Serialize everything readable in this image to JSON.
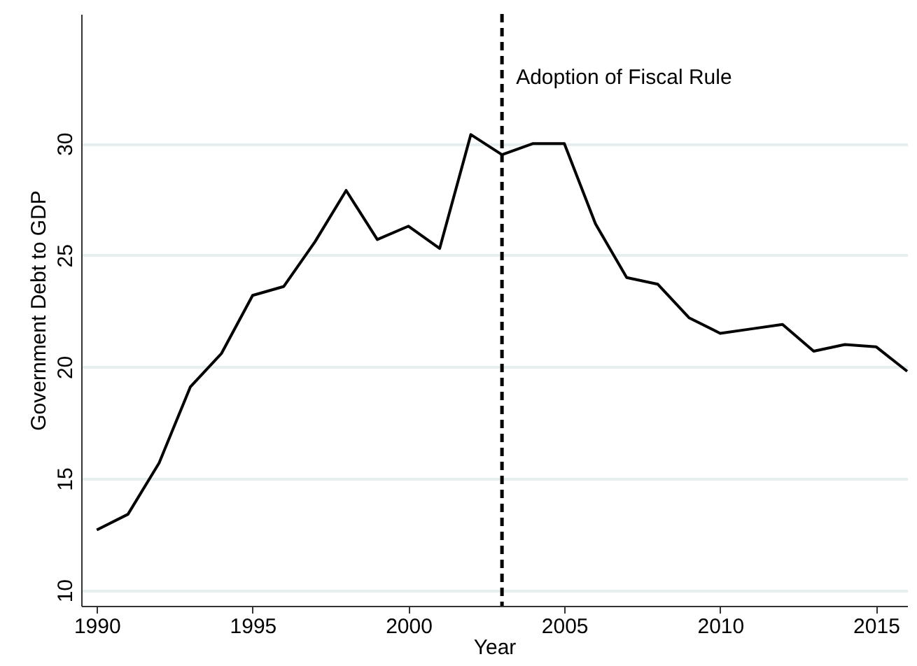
{
  "chart_data": {
    "type": "line",
    "xlabel": "Year",
    "ylabel": "Government Debt to GDP",
    "x": [
      1990,
      1991,
      1992,
      1993,
      1994,
      1995,
      1996,
      1997,
      1998,
      1999,
      2000,
      2001,
      2002,
      2003,
      2004,
      2005,
      2006,
      2007,
      2008,
      2009,
      2010,
      2011,
      2012,
      2013,
      2014,
      2015,
      2016
    ],
    "series": [
      {
        "color": "#000000",
        "values": [
          12.7,
          13.4,
          15.7,
          19.1,
          20.6,
          23.2,
          23.6,
          25.6,
          27.9,
          25.7,
          26.3,
          25.3,
          30.4,
          29.5,
          30.0,
          30.0,
          26.4,
          24.0,
          23.7,
          22.2,
          21.5,
          21.7,
          21.9,
          20.7,
          21.0,
          20.9,
          19.8
        ]
      }
    ],
    "xlim": [
      1989.5,
      2016
    ],
    "xticks": [
      1990,
      1995,
      2000,
      2005,
      2010,
      2015
    ],
    "ylim": [
      9.3,
      35.8
    ],
    "yticks": [
      10,
      15,
      20,
      25,
      30
    ],
    "grid": "y",
    "marker": "none",
    "line_style": "solid",
    "ref_lines": [
      {
        "axis": "x",
        "value": 2003,
        "label": "Adoption of Fiscal Rule",
        "color": "#000000",
        "line_style": "dashed"
      }
    ]
  }
}
